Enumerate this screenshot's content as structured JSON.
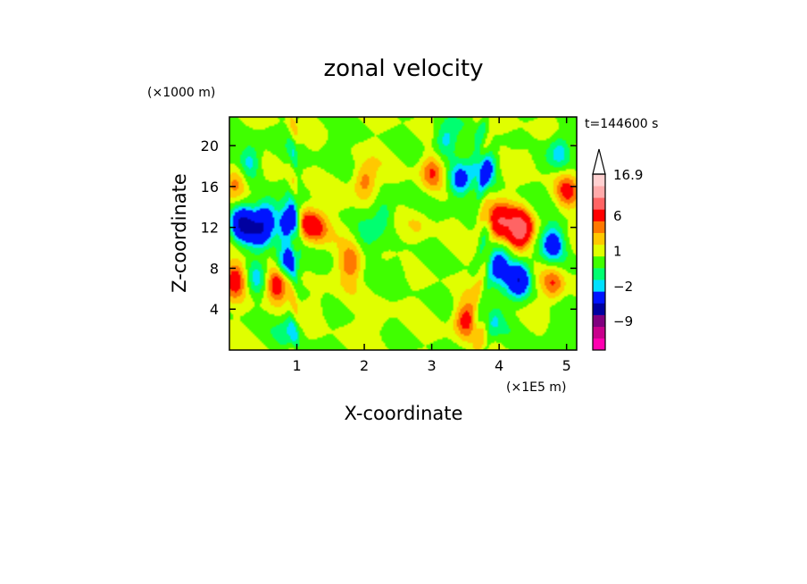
{
  "chart_data": {
    "type": "heatmap",
    "title": "zonal velocity",
    "xlabel": "X-coordinate",
    "ylabel": "Z-coordinate",
    "x_unit": "(×1E5 m)",
    "y_unit": "(×1000 m)",
    "time_label": "t=144600 s",
    "xlim": [
      0,
      5.15
    ],
    "ylim": [
      0,
      22.8
    ],
    "x_ticks": [
      1,
      2,
      3,
      4,
      5
    ],
    "y_ticks": [
      4,
      8,
      12,
      16,
      20
    ],
    "colorbar": {
      "labels": [
        {
          "text": "16.9",
          "level": 17
        },
        {
          "text": "6",
          "level": 6
        },
        {
          "text": "1",
          "level": 1
        },
        {
          "text": "-2",
          "level": -2
        },
        {
          "text": "-9",
          "level": -9
        }
      ],
      "levels": [
        -15,
        -12,
        -9,
        -6,
        -3,
        -2,
        -1,
        0,
        1,
        2,
        3,
        6,
        9,
        12,
        17
      ],
      "colors": [
        "#ff00b0",
        "#c8008c",
        "#80007f",
        "#0000a0",
        "#0014ff",
        "#00e0ff",
        "#00ff70",
        "#40ff00",
        "#e0ff00",
        "#ffc800",
        "#ff7800",
        "#ff0000",
        "#ff6464",
        "#ffaaaa",
        "#ffd0d0"
      ],
      "extend_max": true
    },
    "features": [
      {
        "x": 0.2,
        "z": 12.3,
        "value": -6
      },
      {
        "x": 0.45,
        "z": 11.5,
        "value": -4
      },
      {
        "x": 0.55,
        "z": 13.2,
        "value": -4
      },
      {
        "x": 0.9,
        "z": 12.5,
        "value": -6
      },
      {
        "x": 0.85,
        "z": 8.5,
        "value": -5
      },
      {
        "x": 1.1,
        "z": 12.5,
        "value": 4
      },
      {
        "x": 1.3,
        "z": 12.0,
        "value": 3
      },
      {
        "x": 0.1,
        "z": 7.0,
        "value": 4
      },
      {
        "x": 0.4,
        "z": 7.0,
        "value": -2
      },
      {
        "x": 0.7,
        "z": 6.5,
        "value": 5
      },
      {
        "x": 0.1,
        "z": 16.5,
        "value": 3
      },
      {
        "x": 0.3,
        "z": 18.5,
        "value": -3
      },
      {
        "x": 1.8,
        "z": 8.5,
        "value": 3
      },
      {
        "x": 2.0,
        "z": 10.5,
        "value": -1
      },
      {
        "x": 2.5,
        "z": 8.0,
        "value": -1
      },
      {
        "x": 3.4,
        "z": 16.5,
        "value": -4
      },
      {
        "x": 3.8,
        "z": 18.0,
        "value": -4
      },
      {
        "x": 3.0,
        "z": 17.5,
        "value": 3
      },
      {
        "x": 3.2,
        "z": 20.5,
        "value": -3
      },
      {
        "x": 4.3,
        "z": 11.8,
        "value": 8
      },
      {
        "x": 4.0,
        "z": 12.5,
        "value": 6
      },
      {
        "x": 4.3,
        "z": 7.0,
        "value": -6
      },
      {
        "x": 4.0,
        "z": 8.5,
        "value": -4
      },
      {
        "x": 4.8,
        "z": 10.5,
        "value": -4
      },
      {
        "x": 4.8,
        "z": 6.5,
        "value": 3
      },
      {
        "x": 5.0,
        "z": 15.5,
        "value": 3
      },
      {
        "x": 4.9,
        "z": 19.5,
        "value": -3
      },
      {
        "x": 4.4,
        "z": 19.0,
        "value": 1
      },
      {
        "x": 3.5,
        "z": 3.0,
        "value": 4
      },
      {
        "x": 3.9,
        "z": 3.0,
        "value": -2
      },
      {
        "x": 2.2,
        "z": 3.0,
        "value": 1
      },
      {
        "x": 4.8,
        "z": 2.0,
        "value": -1
      },
      {
        "x": 1.5,
        "z": 19.5,
        "value": -1
      },
      {
        "x": 2.0,
        "z": 16.5,
        "value": 3
      },
      {
        "x": 2.3,
        "z": 13.5,
        "value": -2
      },
      {
        "x": 2.8,
        "z": 12.0,
        "value": 1
      },
      {
        "x": 1.3,
        "z": 4.5,
        "value": 1
      },
      {
        "x": 0.9,
        "z": 2.0,
        "value": -2
      }
    ]
  }
}
